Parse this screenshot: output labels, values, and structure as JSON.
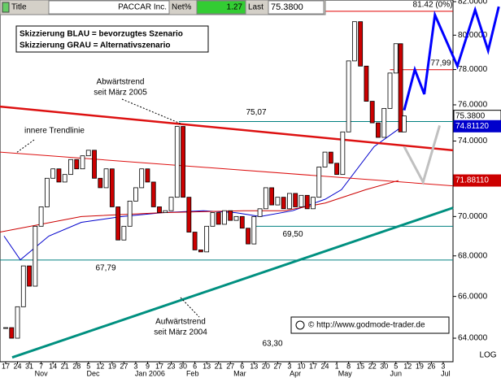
{
  "header": {
    "title_label": "Title",
    "symbol": "PACCAR Inc.",
    "net_label": "Net%",
    "net_value": "1.27",
    "last_label": "Last",
    "last_value": "75.3800"
  },
  "chart_data": {
    "type": "candlestick",
    "log_scale": true,
    "xlim": [
      -0.48,
      37.83
    ],
    "ylim": [
      62.9,
      82.1
    ],
    "xticks": [
      {
        "value": 0,
        "label": "17"
      },
      {
        "value": 1,
        "label": "24"
      },
      {
        "value": 2,
        "label": "31"
      },
      {
        "value": 3,
        "label": "7"
      },
      {
        "value": 4,
        "label": "14"
      },
      {
        "value": 5,
        "label": "21"
      },
      {
        "value": 6,
        "label": "28"
      },
      {
        "value": 7,
        "label": "5"
      },
      {
        "value": 8,
        "label": "12"
      },
      {
        "value": 9,
        "label": "19"
      },
      {
        "value": 10,
        "label": "27"
      },
      {
        "value": 11,
        "label": "3"
      },
      {
        "value": 12,
        "label": "9"
      },
      {
        "value": 13,
        "label": "17"
      },
      {
        "value": 14,
        "label": "23"
      },
      {
        "value": 15,
        "label": "30"
      },
      {
        "value": 16,
        "label": "6"
      },
      {
        "value": 17,
        "label": "13"
      },
      {
        "value": 18,
        "label": "21"
      },
      {
        "value": 19,
        "label": "27"
      },
      {
        "value": 20,
        "label": "6"
      },
      {
        "value": 21,
        "label": "13"
      },
      {
        "value": 22,
        "label": "20"
      },
      {
        "value": 23,
        "label": "27"
      },
      {
        "value": 24,
        "label": "3"
      },
      {
        "value": 25,
        "label": "10"
      },
      {
        "value": 26,
        "label": "17"
      },
      {
        "value": 27,
        "label": "24"
      },
      {
        "value": 28,
        "label": "1"
      },
      {
        "value": 29,
        "label": "8"
      },
      {
        "value": 30,
        "label": "15"
      },
      {
        "value": 31,
        "label": "22"
      },
      {
        "value": 32,
        "label": "30"
      },
      {
        "value": 33,
        "label": "5"
      },
      {
        "value": 34,
        "label": "12"
      },
      {
        "value": 35,
        "label": "19"
      },
      {
        "value": 36,
        "label": "26"
      },
      {
        "value": 37,
        "label": "3"
      }
    ],
    "months": [
      {
        "value": 3,
        "label": "Nov"
      },
      {
        "value": 7.4,
        "label": "Dec"
      },
      {
        "value": 12.2,
        "label": "Jan 2006"
      },
      {
        "value": 15.8,
        "label": "Feb"
      },
      {
        "value": 19.8,
        "label": "Mar"
      },
      {
        "value": 24.5,
        "label": "Apr"
      },
      {
        "value": 28.7,
        "label": "May"
      },
      {
        "value": 33,
        "label": "Jun"
      },
      {
        "value": 37.2,
        "label": "Jul"
      }
    ],
    "yticks": [
      {
        "value": 64,
        "label": "64.0000"
      },
      {
        "value": 66,
        "label": "66.0000"
      },
      {
        "value": 68,
        "label": "68.0000"
      },
      {
        "value": 70,
        "label": "70.0000"
      },
      {
        "value": 72,
        "label": "72.0000"
      },
      {
        "value": 74,
        "label": "74.0000"
      },
      {
        "value": 76,
        "label": "76.0000"
      },
      {
        "value": 78,
        "label": "78.0000"
      },
      {
        "value": 80,
        "label": "80.0000"
      },
      {
        "value": 82,
        "label": "82.0000"
      }
    ],
    "scale_label": "LOG",
    "price": {
      "x": [
        0,
        0.5,
        1,
        1.5,
        2,
        2.5,
        3,
        3.5,
        4,
        4.5,
        5,
        5.5,
        6,
        6.5,
        7,
        7.5,
        8,
        8.5,
        9,
        9.5,
        10,
        10.5,
        11,
        11.5,
        12,
        12.5,
        13,
        13.5,
        14,
        14.5,
        15,
        15.5,
        16,
        16.5,
        17,
        17.5,
        18,
        18.5,
        19,
        19.5,
        20,
        20.5,
        21,
        21.5,
        22,
        22.5,
        23,
        23.5,
        24,
        24.5,
        25,
        25.5,
        26,
        26.5,
        27,
        27.5,
        28,
        28.5,
        29,
        29.5,
        30,
        30.5,
        31,
        31.5,
        32,
        32.5,
        33,
        33.4,
        33.7
      ],
      "close": [
        64.5,
        64.0,
        65.5,
        67.5,
        66.5,
        69.5,
        70.5,
        72,
        72.5,
        71.8,
        72.2,
        73,
        72.5,
        73.2,
        73.5,
        72,
        71.5,
        72.5,
        70.5,
        68.8,
        69.5,
        70.8,
        71.5,
        72.5,
        71.8,
        70.5,
        70.2,
        70.3,
        71,
        74.8,
        71,
        69.2,
        68.3,
        68.2,
        69.5,
        70.2,
        69.6,
        70.3,
        69.8,
        70,
        69.4,
        68.6,
        70,
        70.4,
        71.5,
        70.6,
        71,
        70.4,
        71.2,
        70.5,
        71.1,
        70.4,
        71,
        72.6,
        73.4,
        72.8,
        72.2,
        74.5,
        78.5,
        80.8,
        78.2,
        76.2,
        75,
        74.2,
        75.8,
        77.8,
        79.5,
        74.5,
        75.38
      ],
      "up_color": "#ffffff",
      "down_color": "#cc0000"
    },
    "moving_averages": [
      {
        "color": "#0000cc",
        "x": [
          -0.14,
          1.24,
          3.65,
          6.4,
          9.83,
          13.27,
          16.71,
          19.46,
          21.53,
          24.28,
          27.03,
          28.4,
          31.16,
          33.56
        ],
        "values": [
          69.0,
          67.8,
          69.0,
          69.7,
          70.0,
          70.2,
          70.3,
          70.2,
          70.0,
          70.3,
          70.9,
          71.4,
          73.7,
          74.8112
        ],
        "value_label": "74.81120"
      },
      {
        "color": "#cc0000",
        "x": [
          -0.48,
          6.4,
          13.27,
          20.15,
          23.59,
          27.03,
          30.47,
          33.22
        ],
        "values": [
          69.2,
          70.0,
          70.2,
          70.3,
          70.3,
          70.7,
          71.4,
          71.8811
        ],
        "value_label": "71.88110"
      }
    ],
    "levels": [
      {
        "value": 81.42,
        "label": "81.42 (0%)",
        "color": "#e00000",
        "from": -0.48
      },
      {
        "value": 77.99,
        "label": "77,99",
        "color": "#e00000",
        "from": 32.5
      },
      {
        "value": 75.07,
        "label": "75,07",
        "color": "#008080",
        "from": 14.65
      },
      {
        "value": 69.5,
        "label": "69,50",
        "color": "#008080",
        "from": 20.8
      },
      {
        "value": 67.79,
        "label": "67,79",
        "color": "#008080",
        "from": -0.48
      }
    ],
    "trendlines": [
      {
        "color": "#dd1111",
        "width": 2.5,
        "x": [
          -0.48,
          37.83
        ],
        "values": [
          75.9,
          73.5
        ]
      },
      {
        "color": "#dd1111",
        "width": 1,
        "x": [
          -0.48,
          37.83
        ],
        "values": [
          73.4,
          71.6
        ]
      },
      {
        "color": "#009080",
        "width": 3,
        "x": [
          0.55,
          37.83
        ],
        "values": [
          63.1,
          70.45
        ]
      }
    ],
    "projections": [
      {
        "color": "#0000ff",
        "x": [
          33.7,
          34.6,
          35.4,
          36.3,
          38.2,
          39.7,
          40.8,
          41.7
        ],
        "values": [
          75.7,
          78.0,
          76.6,
          81.2,
          78.2,
          81.5,
          79.1,
          81.7
        ]
      },
      {
        "color": "#c0c0c0",
        "x": [
          33.7,
          35.3,
          36.7
        ],
        "values": [
          73.7,
          71.8,
          74.85
        ]
      }
    ],
    "annotations": {
      "downtrend": [
        "Abwärtstrend",
        "seit März 2005"
      ],
      "inner": "innere Trendlinie",
      "uptrend": [
        "Aufwärtstrend",
        "seit März 2004"
      ],
      "low": "63,30"
    },
    "legend_box": [
      "Skizzierung BLAU = bevorzugtes Szenario",
      "Skizzierung GRAU = Alternativszenario"
    ],
    "copyright": "© http://www.godmode-trader.de"
  }
}
